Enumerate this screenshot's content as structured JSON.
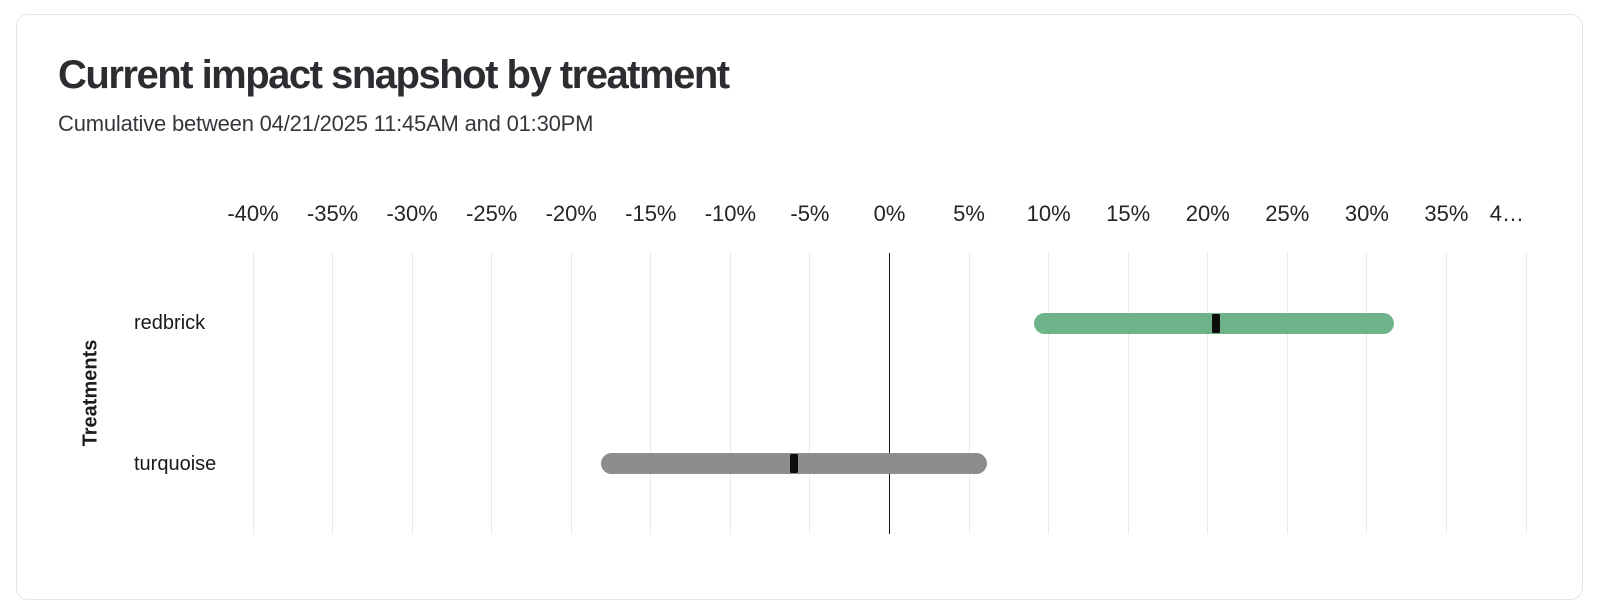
{
  "card": {
    "title": "Current impact snapshot by treatment",
    "subtitle": "Cumulative between 04/21/2025 11:45AM and 01:30PM"
  },
  "chart_data": {
    "type": "bar",
    "subtype": "horizontal_interval_range",
    "title": "Current impact snapshot by treatment",
    "subtitle": "Cumulative between 04/21/2025 11:45AM and 01:30PM",
    "xlabel": "",
    "ylabel": "Treatments",
    "xlim": [
      -40,
      40
    ],
    "x_tick_step": 5,
    "x_tick_labels": [
      "-40%",
      "-35%",
      "-30%",
      "-25%",
      "-20%",
      "-15%",
      "-10%",
      "-5%",
      "0%",
      "5%",
      "10%",
      "15%",
      "20%",
      "25%",
      "30%",
      "35%",
      "4…"
    ],
    "grid": "vertical-light",
    "zero_line": true,
    "legend": "none",
    "categories": [
      "redbrick",
      "turquoise"
    ],
    "series": [
      {
        "name": "redbrick",
        "interval_low_pct": 9.1,
        "estimate_pct": 20.5,
        "interval_high_pct": 31.7,
        "bar_color": "#6eb389"
      },
      {
        "name": "turquoise",
        "interval_low_pct": -18.1,
        "estimate_pct": -6.0,
        "interval_high_pct": 6.1,
        "bar_color": "#8d8d8d"
      }
    ],
    "estimate_marker_color": "#0d0d0d",
    "gridline_color": "#e9e9ea",
    "zero_line_color": "#141414"
  }
}
